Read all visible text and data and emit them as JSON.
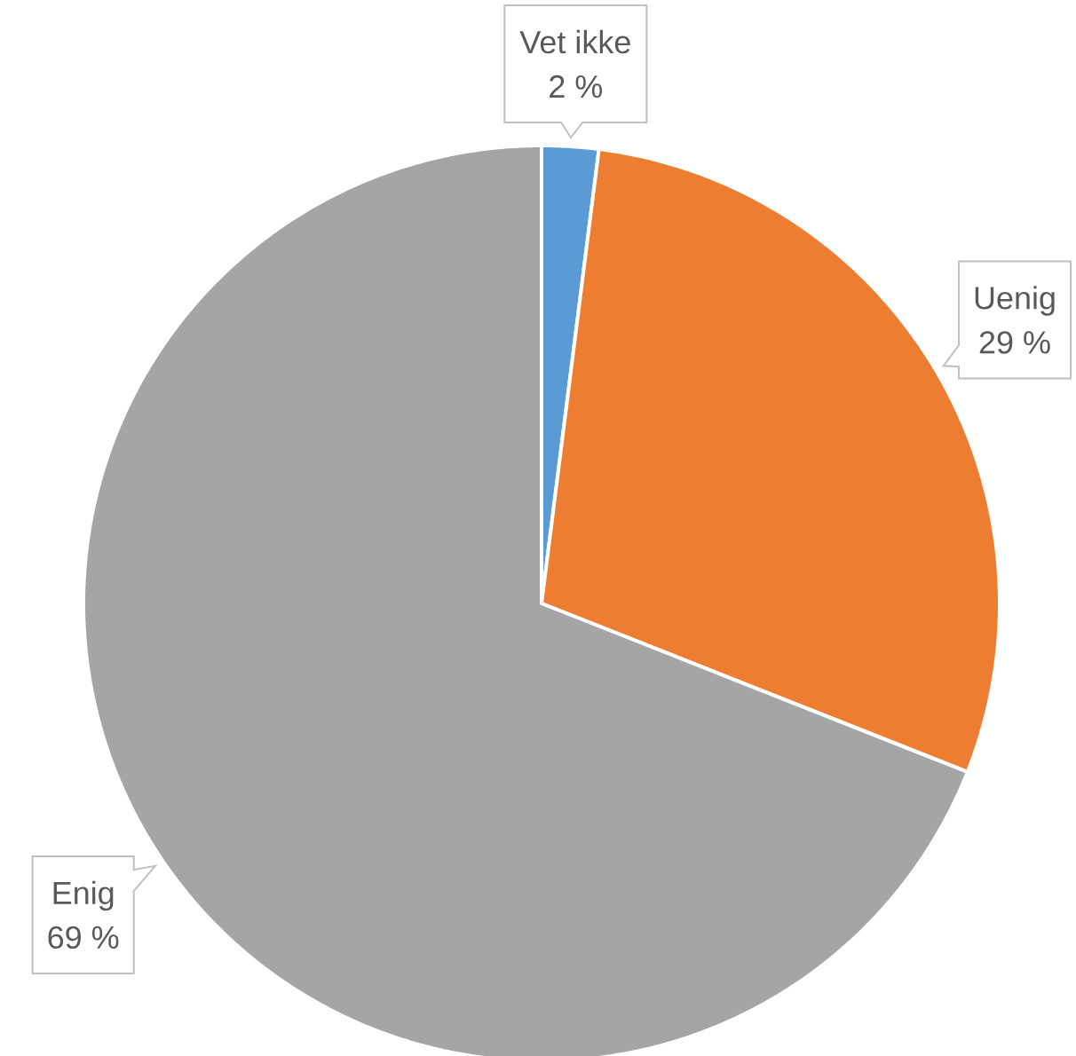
{
  "chart_data": {
    "type": "pie",
    "categories": [
      "Vet ikke",
      "Uenig",
      "Enig"
    ],
    "values": [
      2,
      29,
      69
    ],
    "colors": [
      "#5b9bd5",
      "#ed7d31",
      "#a5a5a5"
    ],
    "value_labels": [
      "2 %",
      "29 %",
      "69 %"
    ]
  }
}
